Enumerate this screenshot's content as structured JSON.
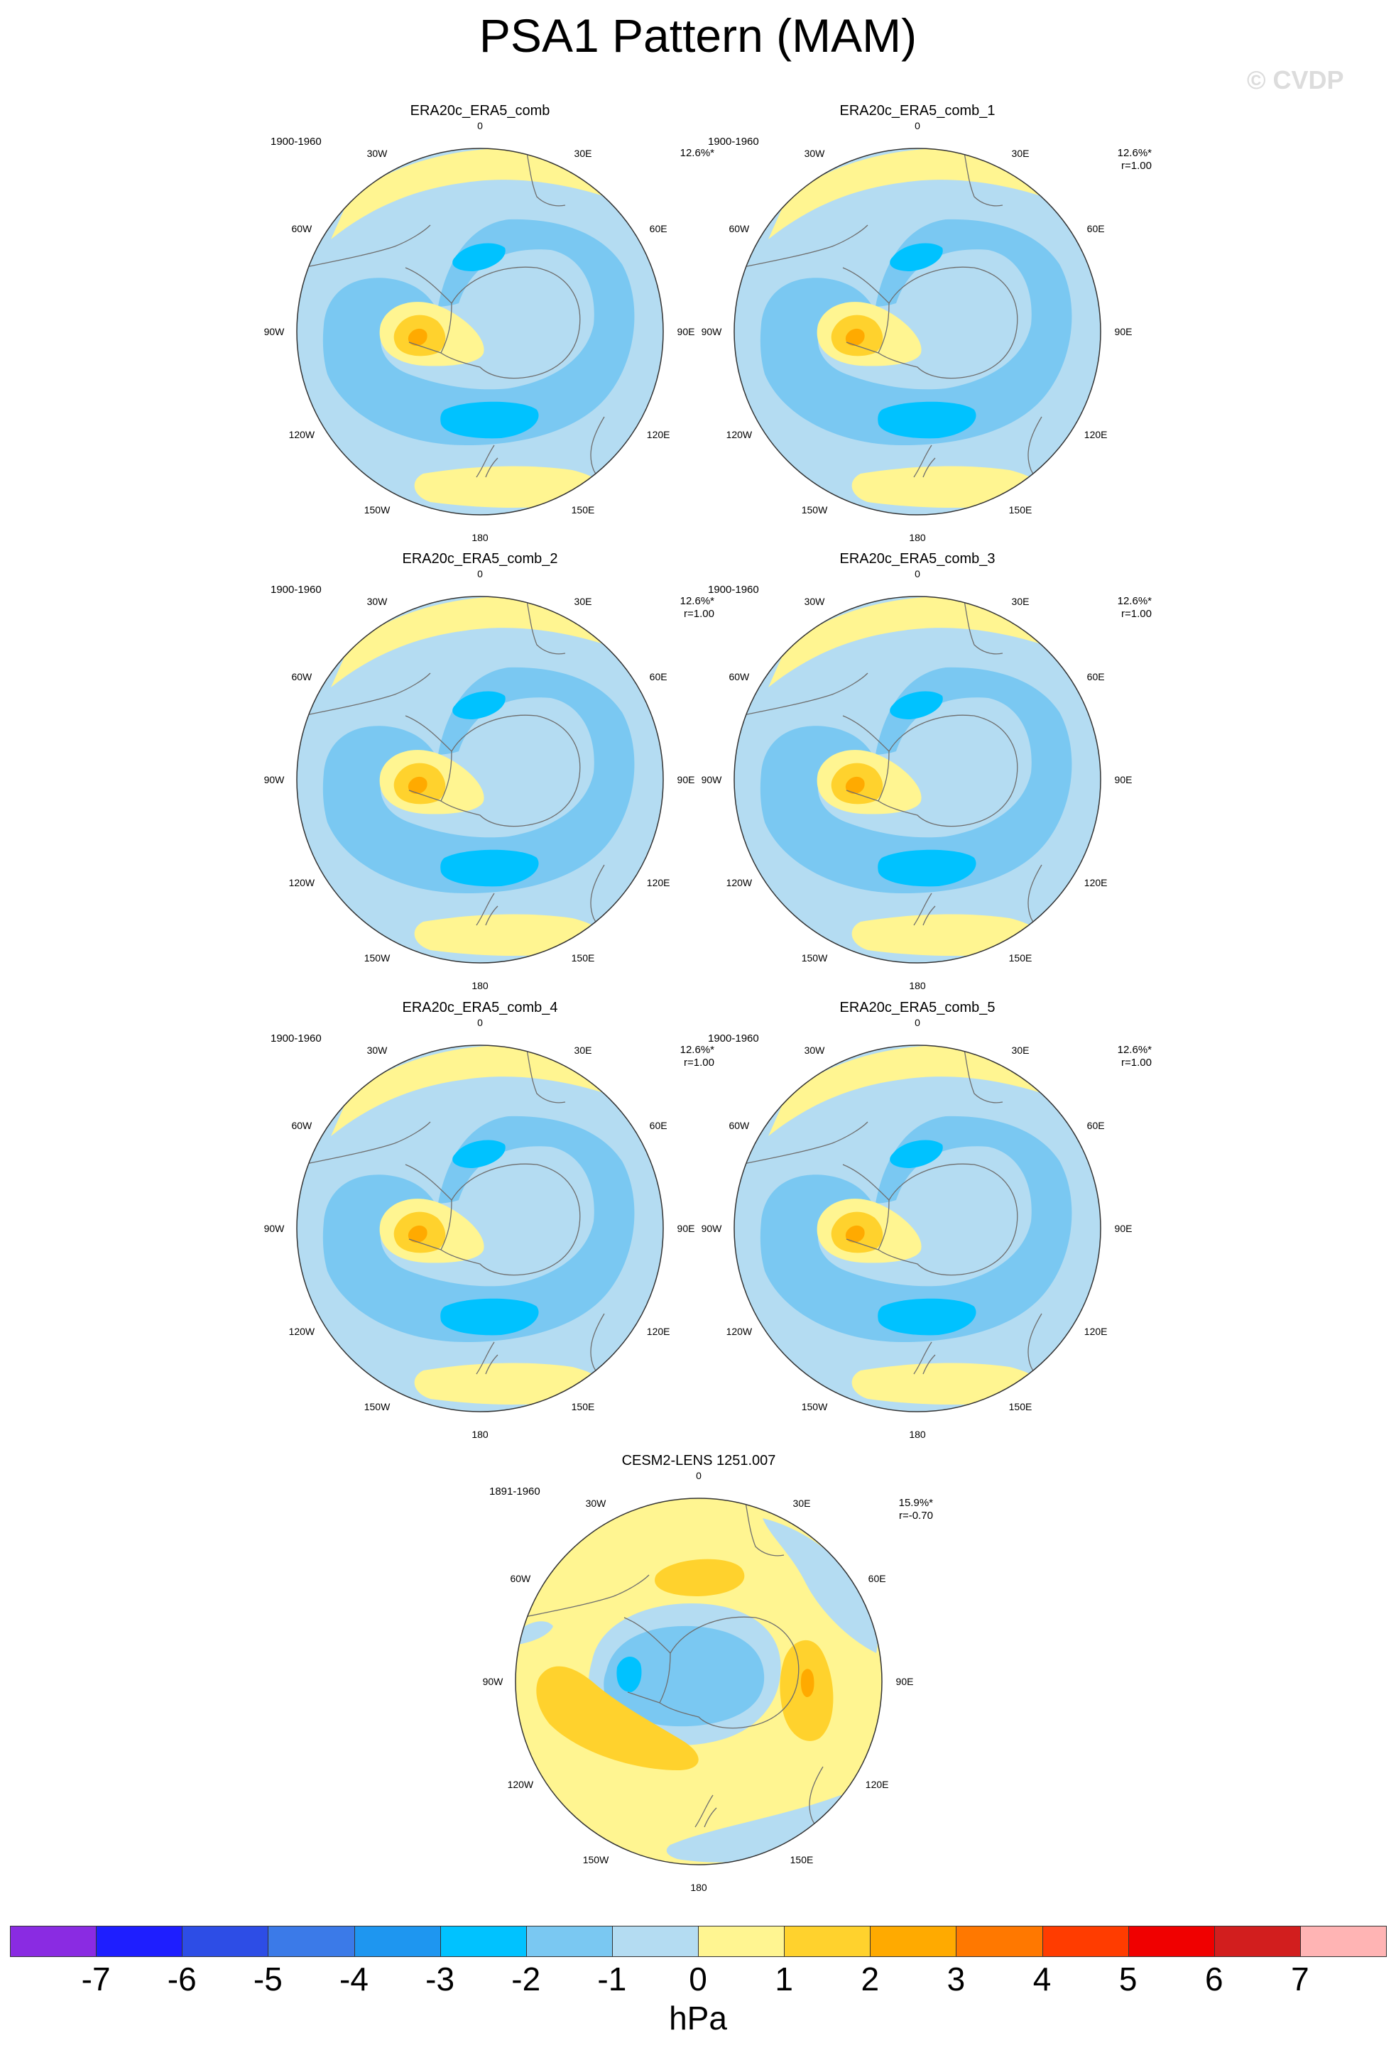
{
  "title": "PSA1 Pattern (MAM)",
  "watermark": "© CVDP",
  "colorbar": {
    "units": "hPa",
    "colors": [
      "#8a2be2",
      "#1e1eff",
      "#2d4de6",
      "#3b7ae8",
      "#1e96f0",
      "#00c2ff",
      "#7ac8f2",
      "#b4dcf2",
      "#fff591",
      "#ffd22d",
      "#ffaa00",
      "#ff7800",
      "#ff3c00",
      "#f00000",
      "#d21e1e",
      "#ffb4b4"
    ],
    "labels": [
      "-7",
      "-6",
      "-5",
      "-4",
      "-3",
      "-2",
      "-1",
      "0",
      "1",
      "2",
      "3",
      "4",
      "5",
      "6",
      "7"
    ]
  },
  "lon_labels": [
    "0",
    "30E",
    "60E",
    "90E",
    "120E",
    "150E",
    "180",
    "150W",
    "120W",
    "90W",
    "60W",
    "30W"
  ],
  "panels": [
    {
      "name": "ERA20c_ERA5_comb",
      "period": "1900-1960",
      "pct": "12.6%*",
      "r": "",
      "pattern": "era"
    },
    {
      "name": "ERA20c_ERA5_comb_1",
      "period": "1900-1960",
      "pct": "12.6%*",
      "r": "r=1.00",
      "pattern": "era"
    },
    {
      "name": "ERA20c_ERA5_comb_2",
      "period": "1900-1960",
      "pct": "12.6%*",
      "r": "r=1.00",
      "pattern": "era"
    },
    {
      "name": "ERA20c_ERA5_comb_3",
      "period": "1900-1960",
      "pct": "12.6%*",
      "r": "r=1.00",
      "pattern": "era"
    },
    {
      "name": "ERA20c_ERA5_comb_4",
      "period": "1900-1960",
      "pct": "12.6%*",
      "r": "r=1.00",
      "pattern": "era"
    },
    {
      "name": "ERA20c_ERA5_comb_5",
      "period": "1900-1960",
      "pct": "12.6%*",
      "r": "r=1.00",
      "pattern": "era"
    },
    {
      "name": "CESM2-LENS 1251.007",
      "period": "1891-1960",
      "pct": "15.9%*",
      "r": "r=-0.70",
      "pattern": "cesm"
    }
  ]
}
